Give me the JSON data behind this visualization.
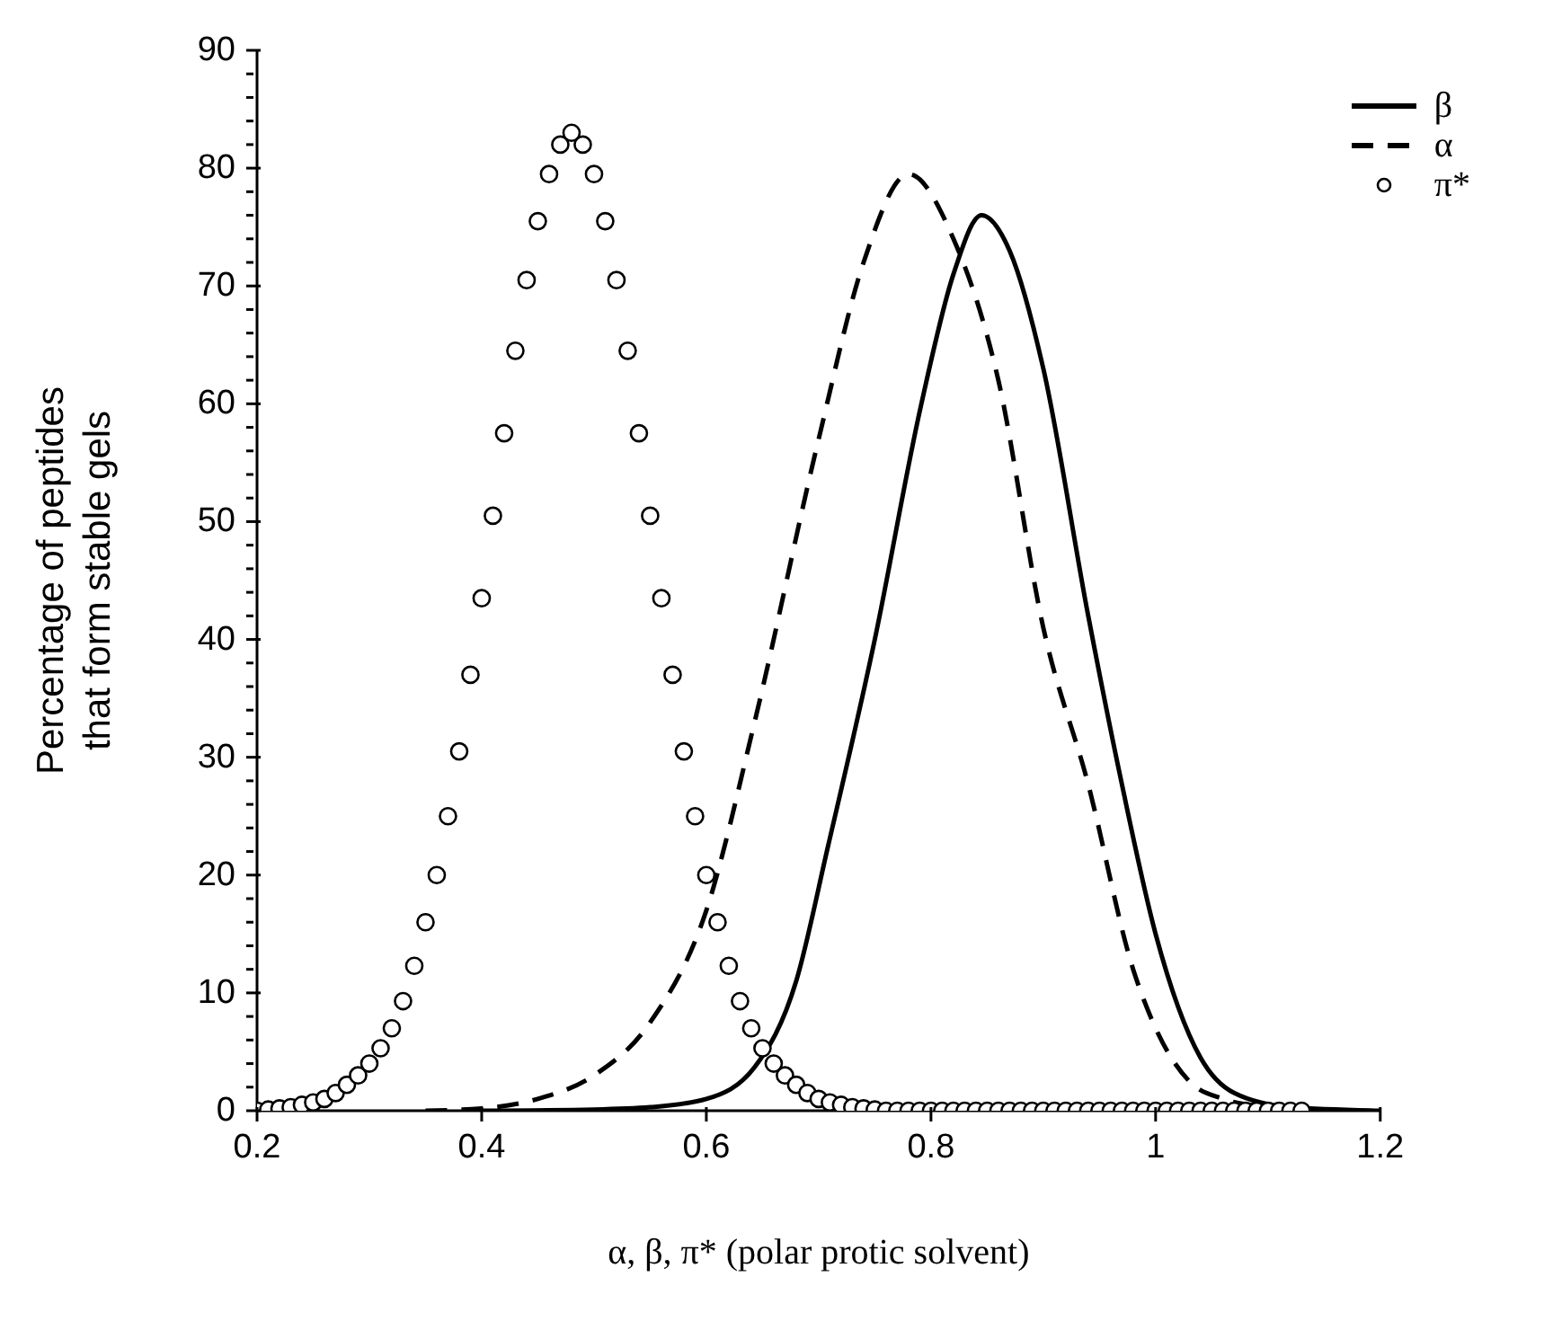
{
  "chart_data": {
    "type": "line",
    "xlabel": "α, β, π* (polar protic solvent)",
    "ylabel": "Percentage of peptides\nthat form stable gels",
    "xlim": [
      0.2,
      1.2
    ],
    "xticks": [
      0.2,
      0.4,
      0.6,
      0.8,
      1,
      1.2
    ],
    "ylim": [
      0,
      90
    ],
    "yticks": [
      0,
      {
        "value": 2,
        "label": null
      },
      {
        "value": 4,
        "label": null
      },
      {
        "value": 6,
        "label": null
      },
      {
        "value": 8,
        "label": null
      },
      10,
      {
        "value": 12,
        "label": null
      },
      {
        "value": 14,
        "label": null
      },
      {
        "value": 16,
        "label": null
      },
      {
        "value": 18,
        "label": null
      },
      20,
      {
        "value": 22,
        "label": null
      },
      {
        "value": 24,
        "label": null
      },
      {
        "value": 26,
        "label": null
      },
      {
        "value": 28,
        "label": null
      },
      30,
      {
        "value": 32,
        "label": null
      },
      {
        "value": 34,
        "label": null
      },
      {
        "value": 36,
        "label": null
      },
      {
        "value": 38,
        "label": null
      },
      40,
      {
        "value": 42,
        "label": null
      },
      {
        "value": 44,
        "label": null
      },
      {
        "value": 46,
        "label": null
      },
      {
        "value": 48,
        "label": null
      },
      50,
      {
        "value": 52,
        "label": null
      },
      {
        "value": 54,
        "label": null
      },
      {
        "value": 56,
        "label": null
      },
      {
        "value": 58,
        "label": null
      },
      60,
      {
        "value": 62,
        "label": null
      },
      {
        "value": 64,
        "label": null
      },
      {
        "value": 66,
        "label": null
      },
      {
        "value": 68,
        "label": null
      },
      70,
      {
        "value": 72,
        "label": null
      },
      {
        "value": 74,
        "label": null
      },
      {
        "value": 76,
        "label": null
      },
      {
        "value": 78,
        "label": null
      },
      80,
      {
        "value": 82,
        "label": null
      },
      {
        "value": 84,
        "label": null
      },
      {
        "value": 86,
        "label": null
      },
      {
        "value": 88,
        "label": null
      },
      90
    ],
    "grid": false,
    "legend": "top right",
    "series": [
      {
        "name": "β",
        "color": "#000000",
        "line_style": "solid",
        "marker": "none",
        "x": [
          0.4,
          0.5,
          0.55,
          0.6,
          0.643,
          0.68,
          0.708,
          0.75,
          0.791,
          0.82,
          0.845,
          0.87,
          0.9,
          0.94,
          0.97,
          1.0,
          1.04,
          1.07,
          1.12,
          1.2
        ],
        "values": [
          0,
          0.1,
          0.3,
          1,
          3.7,
          11,
          22.3,
          40,
          59.8,
          71,
          76,
          73,
          63,
          42,
          27.7,
          15,
          4.5,
          1.5,
          0.3,
          0
        ]
      },
      {
        "name": "α",
        "color": "#000000",
        "line_style": "dashed",
        "marker": "none",
        "x": [
          0.35,
          0.4,
          0.45,
          0.5,
          0.55,
          0.6,
          0.643,
          0.7,
          0.74,
          0.78,
          0.82,
          0.86,
          0.9,
          0.94,
          0.98,
          1.0,
          1.03,
          1.06,
          1.1,
          1.13
        ],
        "values": [
          0,
          0.2,
          1,
          3,
          7.5,
          17,
          33,
          57,
          72,
          79.5,
          74,
          62,
          41,
          27.7,
          12,
          7,
          2.5,
          1,
          0.3,
          0
        ]
      },
      {
        "name": "π*",
        "type": "scatter",
        "color": "#000000",
        "marker": "circle",
        "x": [
          0.2,
          0.21,
          0.22,
          0.23,
          0.24,
          0.25,
          0.26,
          0.27,
          0.28,
          0.29,
          0.3,
          0.31,
          0.32,
          0.33,
          0.34,
          0.35,
          0.36,
          0.37,
          0.38,
          0.39,
          0.4,
          0.41,
          0.42,
          0.43,
          0.44,
          0.45,
          0.46,
          0.47,
          0.48,
          0.49,
          0.5,
          0.51,
          0.52,
          0.53,
          0.54,
          0.55,
          0.56,
          0.57,
          0.58,
          0.59,
          0.6,
          0.61,
          0.62,
          0.63,
          0.64,
          0.65,
          0.66,
          0.67,
          0.68,
          0.69,
          0.7,
          0.71,
          0.72,
          0.73,
          0.74,
          0.75,
          0.76,
          0.77,
          0.78,
          0.79,
          0.8,
          0.81,
          0.82,
          0.83,
          0.84,
          0.85,
          0.86,
          0.87,
          0.88,
          0.89,
          0.9,
          0.91,
          0.92,
          0.93,
          0.94,
          0.95,
          0.96,
          0.97,
          0.98,
          0.99,
          1.0,
          1.01,
          1.02,
          1.03,
          1.04,
          1.05,
          1.06,
          1.07,
          1.08,
          1.09,
          1.1,
          1.11,
          1.12,
          1.13
        ],
        "values": [
          0,
          0.1,
          0.2,
          0.3,
          0.5,
          0.7,
          1,
          1.5,
          2.2,
          3,
          4,
          5.3,
          7,
          9.3,
          12.3,
          16,
          20,
          25,
          30.5,
          37,
          43.5,
          50.5,
          57.5,
          64.5,
          70.5,
          75.5,
          79.5,
          82,
          83,
          82,
          79.5,
          75.5,
          70.5,
          64.5,
          57.5,
          50.5,
          43.5,
          37,
          30.5,
          25,
          20,
          16,
          12.3,
          9.3,
          7,
          5.3,
          4,
          3,
          2.2,
          1.5,
          1,
          0.7,
          0.5,
          0.3,
          0.2,
          0.1,
          0,
          0,
          0,
          0,
          0,
          0,
          0,
          0,
          0,
          0,
          0,
          0,
          0,
          0,
          0,
          0,
          0,
          0,
          0,
          0,
          0,
          0,
          0,
          0,
          0,
          0,
          0,
          0,
          0,
          0,
          0,
          0,
          0,
          0,
          0,
          0,
          0,
          0
        ]
      }
    ]
  }
}
